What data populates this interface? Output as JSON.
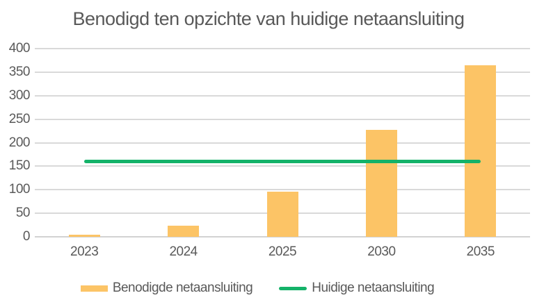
{
  "chart_data": {
    "type": "bar",
    "title": "Benodigd ten opzichte van huidige netaansluiting",
    "categories": [
      "2023",
      "2024",
      "2025",
      "2030",
      "2035"
    ],
    "series": [
      {
        "name": "Benodigde netaansluiting",
        "type": "bar",
        "color": "#FCC466",
        "values": [
          4,
          24,
          96,
          227,
          365
        ]
      },
      {
        "name": "Huidige netaansluiting",
        "type": "line",
        "color": "#14B269",
        "values": [
          160,
          160,
          160,
          160,
          160
        ]
      }
    ],
    "xlabel": "",
    "ylabel": "",
    "ylim": [
      0,
      400
    ],
    "ytick_step": 50,
    "ytick_labels": [
      "0",
      "50",
      "100",
      "150",
      "200",
      "250",
      "300",
      "350",
      "400"
    ],
    "grid": true,
    "gridline_color": "#D9D9D9",
    "axis_line_color": "#D2D2D2",
    "text_color": "#595959",
    "background_color": "#FFFFFF",
    "legend_position": "bottom"
  }
}
